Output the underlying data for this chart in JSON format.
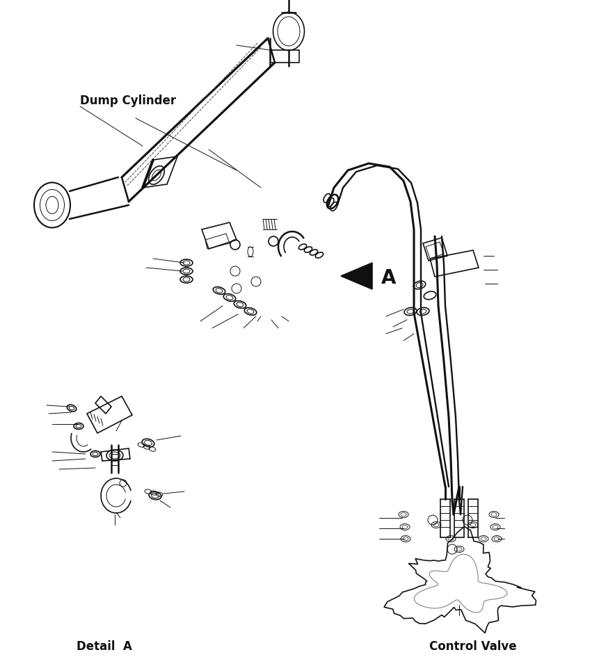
{
  "background_color": "#ffffff",
  "labels": {
    "dump_cylinder": "Dump Cylinder",
    "detail_a": "Detail  A",
    "control_valve": "Control Valve",
    "arrow_label": "A"
  },
  "figsize": [
    8.61,
    9.58
  ],
  "dpi": 100
}
